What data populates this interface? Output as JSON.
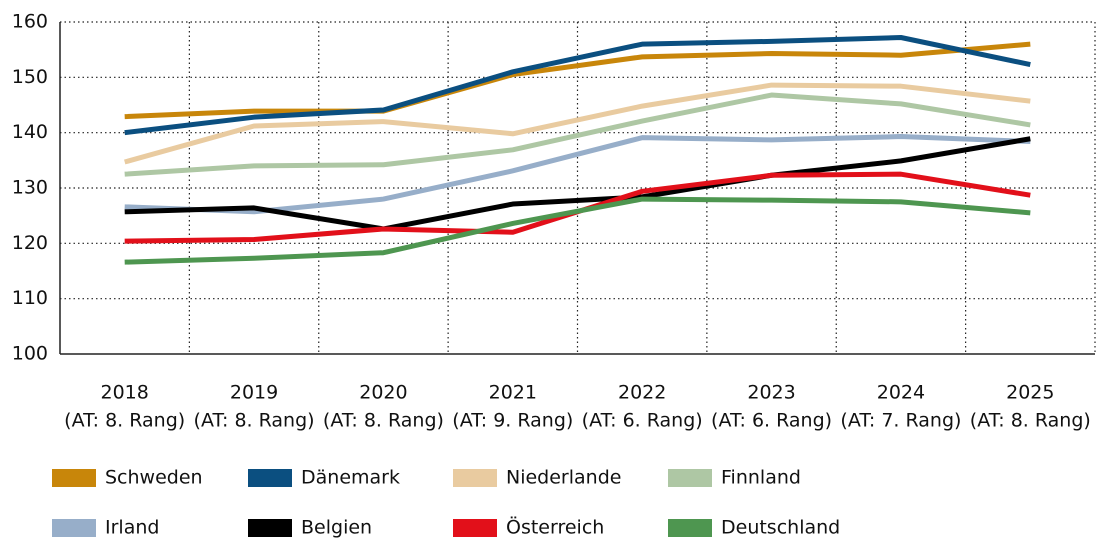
{
  "chart_data": {
    "type": "line",
    "categories": [
      "2018",
      "2019",
      "2020",
      "2021",
      "2022",
      "2023",
      "2024",
      "2025"
    ],
    "category_sublabels": [
      "(AT: 8. Rang)",
      "(AT: 8. Rang)",
      "(AT: 8. Rang)",
      "(AT: 9. Rang)",
      "(AT: 6. Rang)",
      "(AT: 6. Rang)",
      "(AT: 7. Rang)",
      "(AT: 8. Rang)"
    ],
    "ylim": [
      100,
      160
    ],
    "yticks": [
      100,
      110,
      120,
      130,
      140,
      150,
      160
    ],
    "grid": true,
    "series": [
      {
        "name": "Schweden",
        "color": "#c8860a",
        "values": [
          142.9,
          143.9,
          143.9,
          150.5,
          153.7,
          154.3,
          154.0,
          156.0
        ]
      },
      {
        "name": "Dänemark",
        "color": "#0b4f80",
        "values": [
          140.0,
          142.8,
          144.1,
          151.0,
          156.0,
          156.5,
          157.2,
          152.3
        ]
      },
      {
        "name": "Niederlande",
        "color": "#e9cba0",
        "values": [
          134.7,
          141.2,
          142.0,
          139.8,
          144.8,
          148.6,
          148.4,
          145.7
        ]
      },
      {
        "name": "Finnland",
        "color": "#aec7a4",
        "values": [
          132.5,
          134.0,
          134.2,
          136.9,
          142.1,
          146.8,
          145.2,
          141.4
        ]
      },
      {
        "name": "Irland",
        "color": "#97aec9",
        "values": [
          126.6,
          125.7,
          128.0,
          133.1,
          139.1,
          138.7,
          139.3,
          138.4
        ]
      },
      {
        "name": "Belgien",
        "color": "#000000",
        "values": [
          125.7,
          126.4,
          122.6,
          127.1,
          128.4,
          132.3,
          134.9,
          138.9
        ]
      },
      {
        "name": "Österreich",
        "color": "#e2101a",
        "values": [
          120.4,
          120.7,
          122.6,
          122.0,
          129.4,
          132.3,
          132.5,
          128.7
        ]
      },
      {
        "name": "Deutschland",
        "color": "#4e9650",
        "values": [
          116.6,
          117.3,
          118.3,
          123.6,
          128.0,
          127.8,
          127.5,
          125.5
        ]
      }
    ]
  }
}
